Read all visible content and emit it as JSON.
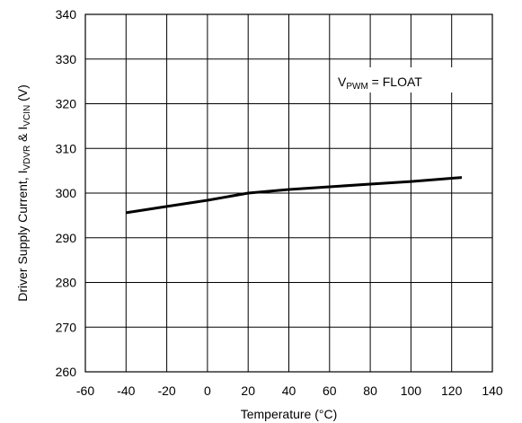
{
  "chart_data": {
    "type": "line",
    "xlabel": "Temperature (°C)",
    "ylabel": {
      "prefix": "Driver Supply Current, I",
      "sub1": "VDVR",
      "mid": " & I",
      "sub2": "VCIN",
      "suffix": " (V)"
    },
    "xlim": [
      -60,
      140
    ],
    "ylim": [
      260,
      340
    ],
    "xticks": [
      -60,
      -40,
      -20,
      0,
      20,
      40,
      60,
      80,
      100,
      120,
      140
    ],
    "yticks": [
      260,
      270,
      280,
      290,
      300,
      310,
      320,
      330,
      340
    ],
    "grid": true,
    "series": [
      {
        "x": [
          -40,
          -20,
          0,
          20,
          40,
          60,
          80,
          100,
          125
        ],
        "y": [
          295.6,
          297.0,
          298.4,
          300.0,
          300.8,
          301.4,
          302.0,
          302.6,
          303.5
        ]
      }
    ],
    "annotation": {
      "prefix": "V",
      "sub": "PWM",
      "suffix": " = FLOAT"
    }
  },
  "colors": {
    "line": "#000000",
    "grid": "#000000",
    "background": "#ffffff"
  }
}
